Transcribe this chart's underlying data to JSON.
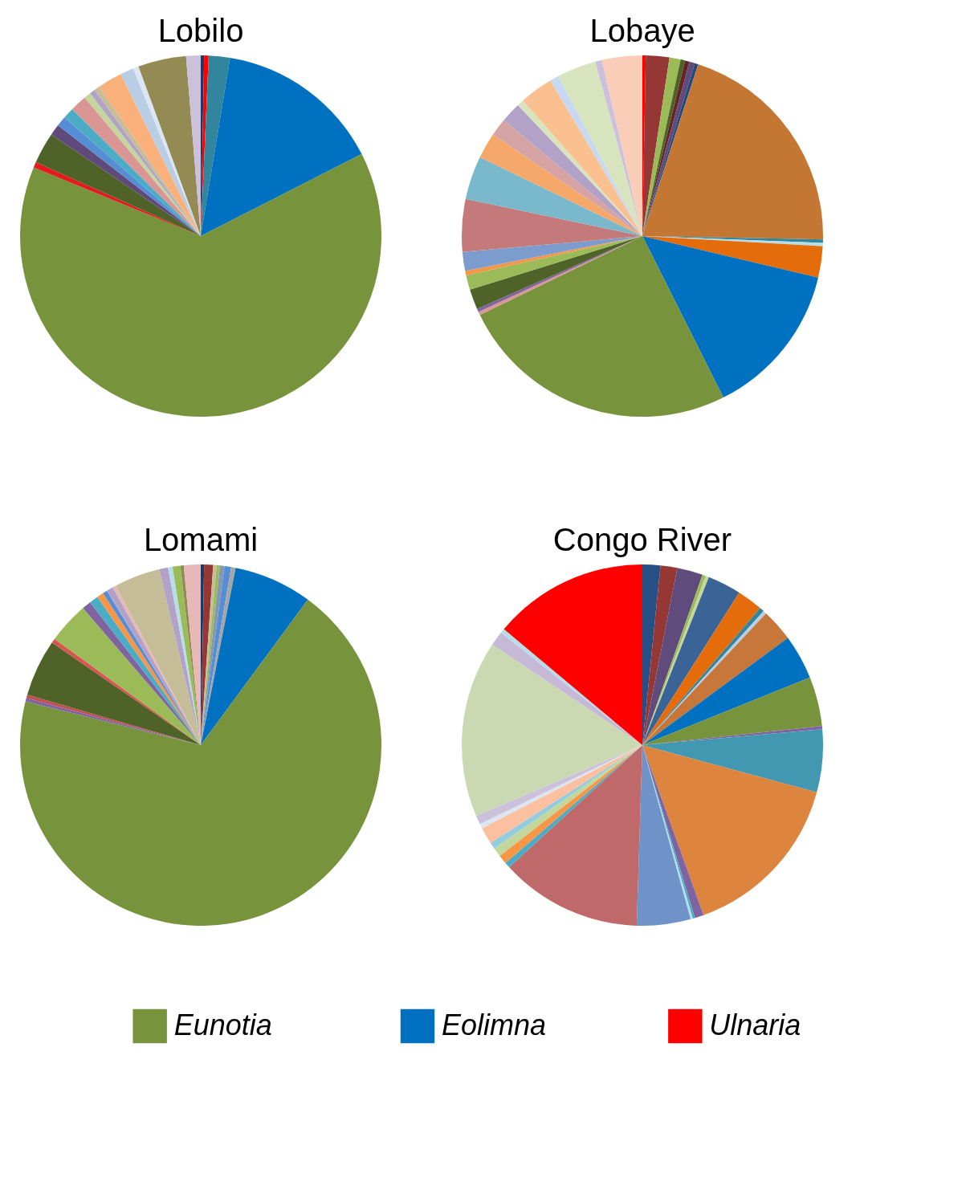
{
  "chart_data": [
    {
      "type": "pie",
      "title": "Lobilo",
      "legend": "bottom",
      "categories": [
        null,
        "Ulnaria",
        null,
        "Eolimna",
        "Eunotia",
        null,
        null,
        null,
        null,
        null,
        null,
        null,
        null,
        null,
        null,
        null,
        null,
        null,
        null
      ],
      "values": [
        0.3,
        0.4,
        1.9,
        14.9,
        63.7,
        0.5,
        2.8,
        1.0,
        0.9,
        1.0,
        1.5,
        0.6,
        0.5,
        0.5,
        2.2,
        1.2,
        0.5,
        4.3,
        1.3
      ],
      "colors": [
        "#1f3864",
        "#ff0000",
        "#31859c",
        "#0070c0",
        "#77933c",
        "#e41a1c",
        "#4f6228",
        "#604a7b",
        "#558ed5",
        "#4bacc6",
        "#d99694",
        "#c3d69b",
        "#b3a2c7",
        "#c4bd97",
        "#fab07a",
        "#b9cde5",
        "#dce6f2",
        "#948a54",
        "#ccc1da"
      ]
    },
    {
      "type": "pie",
      "title": "Lobaye",
      "categories": [
        null,
        null,
        null,
        null,
        null,
        null,
        null,
        null,
        null,
        null,
        null,
        null,
        null,
        null,
        null,
        null,
        null,
        null,
        null,
        null,
        null,
        null,
        null,
        null,
        null,
        null,
        null,
        null,
        null,
        null
      ],
      "values": [
        0.3,
        2.1,
        1.0,
        0.4,
        0.4,
        0.5,
        0.3,
        20.3,
        0.3,
        0.3,
        2.8,
        13.9,
        25.2,
        0.3,
        0.3,
        1.8,
        1.3,
        0.4,
        1.7,
        4.7,
        3.9,
        2.3,
        1.6,
        1.8,
        0.6,
        3.0,
        0.8,
        3.5,
        0.6,
        3.6
      ],
      "colors": [
        "#ff0000",
        "#953735",
        "#9bbb59",
        "#4f6228",
        "#632523",
        "#604a7b",
        "#1f497d",
        "#c47733",
        "#31859c",
        "#b7dee8",
        "#e46c0a",
        "#0070c0",
        "#77933c",
        "#d99694",
        "#8064a2",
        "#4f6228",
        "#9bbb59",
        "#f79646",
        "#7c9cce",
        "#c47a7a",
        "#7ab8cc",
        "#f5a86a",
        "#d5a3a3",
        "#b3a2c7",
        "#d7e4bd",
        "#fac090",
        "#c6d9f1",
        "#d7e4bd",
        "#ccc1da",
        "#f9cdb8"
      ]
    },
    {
      "type": "pie",
      "title": "Lomami",
      "categories": [
        null,
        null,
        null,
        null,
        null,
        null,
        null,
        null,
        null,
        null,
        null,
        null,
        null,
        null,
        null,
        null,
        null,
        null,
        null,
        null,
        null,
        null,
        null,
        null,
        null,
        null
      ],
      "values": [
        0.3,
        0.8,
        0.3,
        0.3,
        0.4,
        0.6,
        0.4,
        7.0,
        68.8,
        0.3,
        0.3,
        5.1,
        0.4,
        3.7,
        0.8,
        0.8,
        0.6,
        0.4,
        0.6,
        0.3,
        4.1,
        0.8,
        0.4,
        0.7,
        0.3,
        1.5
      ],
      "colors": [
        "#1f3864",
        "#953735",
        "#c4bd97",
        "#9bbb59",
        "#8497b0",
        "#558ed5",
        "#a6a6a6",
        "#0070c0",
        "#77933c",
        "#8064a2",
        "#c0504d",
        "#4f6228",
        "#d9534f",
        "#9bbb59",
        "#8064a2",
        "#4bacc6",
        "#f79646",
        "#558ed5",
        "#b3a2c7",
        "#e6b9b8",
        "#c4bd97",
        "#b3a2c7",
        "#b7dee8",
        "#9bbb59",
        "#948a54",
        "#e6b9b8"
      ]
    },
    {
      "type": "pie",
      "title": "Congo River",
      "categories": [
        null,
        null,
        null,
        null,
        null,
        null,
        null,
        null,
        null,
        null,
        null,
        null,
        null,
        null,
        null,
        null,
        null,
        null,
        null,
        null,
        null,
        null,
        null,
        null,
        null,
        null,
        null,
        null,
        null,
        null,
        null
      ],
      "values": [
        1.6,
        1.5,
        2.3,
        0.3,
        0.3,
        3.0,
        2.3,
        0.4,
        0.3,
        2.9,
        4.0,
        4.4,
        0.3,
        5.6,
        15.3,
        0.8,
        0.2,
        0.2,
        4.8,
        12.7,
        0.5,
        0.8,
        0.8,
        0.6,
        1.5,
        0.4,
        0.8,
        15.8,
        1.3,
        0.4,
        13.9
      ],
      "colors": [
        "#254f85",
        "#953735",
        "#5f4b7c",
        "#9bbb59",
        "#c3d69b",
        "#3a6496",
        "#e46c0a",
        "#31859c",
        "#b9cde5",
        "#c8773a",
        "#0070c0",
        "#77933c",
        "#8064a2",
        "#4198b0",
        "#dd843e",
        "#7f64a2",
        "#4bacc6",
        "#b7dee8",
        "#6f93c8",
        "#c0696a",
        "#4bacc6",
        "#f79646",
        "#c3d69b",
        "#93cddd",
        "#fac0a0",
        "#dce6f2",
        "#ccc1da",
        "#cbd9b3",
        "#c6b9d7",
        "#b7dee8",
        "#ff0000"
      ]
    }
  ]
}
